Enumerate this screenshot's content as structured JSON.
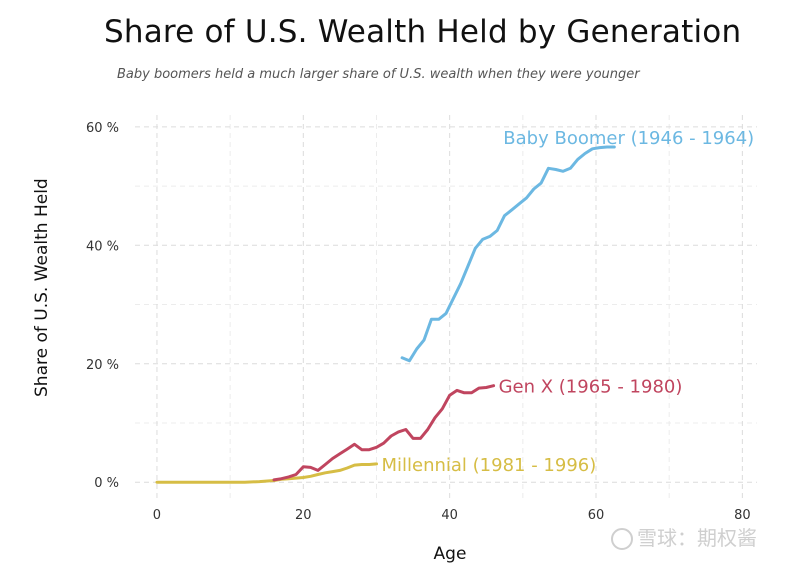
{
  "chart_data": {
    "type": "line",
    "title": "Share of U.S. Wealth Held by Generation",
    "subtitle": "Baby boomers held a much larger share of U.S. wealth when they were younger",
    "xlabel": "Age",
    "ylabel": "Share of U.S. Wealth Held",
    "xlim": [
      -3,
      82
    ],
    "ylim": [
      -3,
      62
    ],
    "x_ticks": [
      0,
      20,
      40,
      60,
      80
    ],
    "x_tick_labels": [
      "0",
      "20",
      "40",
      "60",
      "80"
    ],
    "y_ticks": [
      0,
      20,
      40,
      60
    ],
    "y_tick_labels": [
      "0 %",
      "20 %",
      "40 %",
      "60 %"
    ],
    "grid": true,
    "legend": "direct labels at line ends",
    "series": [
      {
        "name": "Baby Boomer (1946 - 1964)",
        "color": "#6cb8e2",
        "x": [
          33.5,
          34.5,
          35.5,
          36.5,
          37.5,
          38.5,
          39.5,
          40.5,
          41.5,
          42.5,
          43.5,
          44.5,
          45.5,
          46.5,
          47.5,
          48.5,
          49.5,
          50.5,
          51.5,
          52.5,
          53.5,
          54.5,
          55.5,
          56.5,
          57.5,
          58.5,
          59.5,
          60.5,
          61.5,
          62.5
        ],
        "y": [
          21.0,
          20.5,
          22.5,
          24.0,
          27.5,
          27.5,
          28.5,
          31.0,
          33.5,
          36.5,
          39.5,
          41.0,
          41.5,
          42.5,
          45.0,
          46.0,
          47.0,
          48.0,
          49.5,
          50.5,
          53.0,
          52.8,
          52.5,
          53.0,
          54.5,
          55.5,
          56.3,
          56.5,
          56.6,
          56.6
        ]
      },
      {
        "name": "Gen X (1965 - 1980)",
        "color": "#c0455f",
        "x": [
          16,
          17,
          18,
          19,
          20,
          21,
          22,
          23,
          24,
          25,
          26,
          27,
          28,
          29,
          30,
          31,
          32,
          33,
          34,
          35,
          36,
          37,
          38,
          39,
          40,
          41,
          42,
          43,
          44,
          45,
          46
        ],
        "y": [
          0.4,
          0.6,
          0.9,
          1.3,
          2.6,
          2.5,
          2.0,
          3.0,
          4.0,
          4.8,
          5.6,
          6.4,
          5.5,
          5.5,
          5.9,
          6.6,
          7.8,
          8.5,
          8.9,
          7.4,
          7.4,
          8.9,
          10.9,
          12.4,
          14.7,
          15.5,
          15.1,
          15.1,
          15.9,
          16.0,
          16.3
        ]
      },
      {
        "name": "Millennial (1981 - 1996)",
        "color": "#d6bd45",
        "x": [
          0,
          2,
          4,
          6,
          8,
          10,
          12,
          14,
          16,
          17,
          18,
          19,
          20,
          21,
          22,
          23,
          24,
          25,
          26,
          27,
          28,
          29,
          30
        ],
        "y": [
          0,
          0,
          0,
          0,
          0,
          0,
          0,
          0.1,
          0.3,
          0.5,
          0.6,
          0.7,
          0.8,
          1.0,
          1.3,
          1.6,
          1.8,
          2.0,
          2.4,
          2.9,
          3.0,
          3.0,
          3.1
        ]
      }
    ]
  },
  "watermark": {
    "text": "雪球：期权酱",
    "icon": "snowball-logo-icon"
  }
}
